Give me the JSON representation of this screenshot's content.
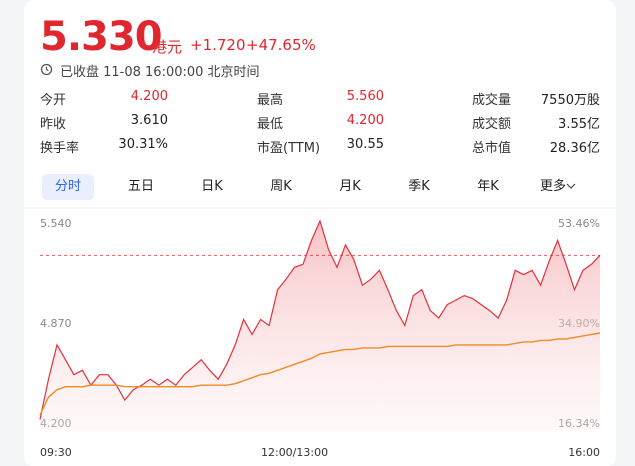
{
  "header": {
    "price": "5.330",
    "currency": "港元",
    "change": "+1.720",
    "change_pct": "+47.65%",
    "status": "已收盘 11-08 16:00:00 北京时间"
  },
  "stats": [
    {
      "label": "今开",
      "value": "4.200",
      "color": "#e0262f"
    },
    {
      "label": "最高",
      "value": "5.560",
      "color": "#e0262f"
    },
    {
      "label": "成交量",
      "value": "7550万股",
      "color": "#222222"
    },
    {
      "label": "昨收",
      "value": "3.610",
      "color": "#222222"
    },
    {
      "label": "最低",
      "value": "4.200",
      "color": "#e0262f"
    },
    {
      "label": "成交额",
      "value": "3.55亿",
      "color": "#222222"
    },
    {
      "label": "换手率",
      "value": "30.31%",
      "color": "#222222"
    },
    {
      "label": "市盈(TTM)",
      "value": "30.55",
      "color": "#222222"
    },
    {
      "label": "总市值",
      "value": "28.36亿",
      "color": "#222222"
    }
  ],
  "tabs": [
    "分时",
    "五日",
    "日K",
    "周K",
    "月K",
    "季K",
    "年K",
    "更多"
  ],
  "active_tab": 0,
  "chart_data": {
    "type": "line",
    "categories": [
      "09:30",
      null,
      null,
      null,
      null,
      null,
      null,
      null,
      null,
      null,
      null,
      null,
      null,
      null,
      null,
      null,
      null,
      null,
      null,
      null,
      null,
      null,
      null,
      null,
      null,
      null,
      null,
      null,
      null,
      null,
      "12:00/13:00",
      null,
      null,
      null,
      null,
      null,
      null,
      null,
      null,
      null,
      null,
      null,
      null,
      null,
      null,
      null,
      null,
      null,
      null,
      null,
      null,
      null,
      null,
      null,
      null,
      null,
      null,
      null,
      null,
      null,
      null,
      null,
      null,
      null,
      null,
      null,
      "16:00"
    ],
    "series": [
      {
        "color": "#e5303a",
        "values": [
          4.23,
          4.5,
          4.73,
          4.63,
          4.53,
          4.56,
          4.46,
          4.53,
          4.53,
          4.46,
          4.36,
          4.43,
          4.46,
          4.5,
          4.46,
          4.5,
          4.46,
          4.53,
          4.58,
          4.63,
          4.56,
          4.5,
          4.6,
          4.73,
          4.9,
          4.8,
          4.9,
          4.86,
          5.1,
          5.17,
          5.25,
          5.27,
          5.43,
          5.56,
          5.37,
          5.25,
          5.4,
          5.3,
          5.13,
          5.17,
          5.23,
          5.1,
          4.96,
          4.86,
          5.06,
          5.1,
          4.96,
          4.91,
          5.0,
          5.03,
          5.06,
          5.04,
          5.0,
          4.96,
          4.91,
          5.03,
          5.23,
          5.2,
          5.23,
          5.13,
          5.29,
          5.43,
          5.27,
          5.1,
          5.23,
          5.27,
          5.33
        ]
      },
      {
        "color": "#f08a24",
        "values": [
          4.26,
          4.38,
          4.43,
          4.45,
          4.45,
          4.45,
          4.46,
          4.46,
          4.46,
          4.46,
          4.45,
          4.45,
          4.45,
          4.45,
          4.45,
          4.45,
          4.45,
          4.45,
          4.45,
          4.46,
          4.46,
          4.46,
          4.46,
          4.47,
          4.49,
          4.51,
          4.53,
          4.54,
          4.56,
          4.58,
          4.6,
          4.62,
          4.64,
          4.67,
          4.68,
          4.69,
          4.7,
          4.7,
          4.71,
          4.71,
          4.71,
          4.72,
          4.72,
          4.72,
          4.72,
          4.72,
          4.72,
          4.72,
          4.72,
          4.73,
          4.73,
          4.73,
          4.73,
          4.73,
          4.73,
          4.73,
          4.74,
          4.75,
          4.75,
          4.76,
          4.76,
          4.77,
          4.77,
          4.78,
          4.79,
          4.8,
          4.81
        ]
      }
    ],
    "ylim": [
      4.2,
      5.54
    ],
    "yticks": [
      {
        "value": 5.54,
        "label": "5.540"
      },
      {
        "value": 4.87,
        "label": "4.870"
      },
      {
        "value": 4.2,
        "label": "4.200"
      }
    ],
    "y2lim": [
      16.34,
      53.46
    ],
    "y2ticks": [
      {
        "value": 53.46,
        "label": "53.46%"
      },
      {
        "value": 34.9,
        "label": "34.90%"
      },
      {
        "value": 16.34,
        "label": "16.34%"
      }
    ],
    "reference_line": 5.33,
    "area_fill": true
  }
}
